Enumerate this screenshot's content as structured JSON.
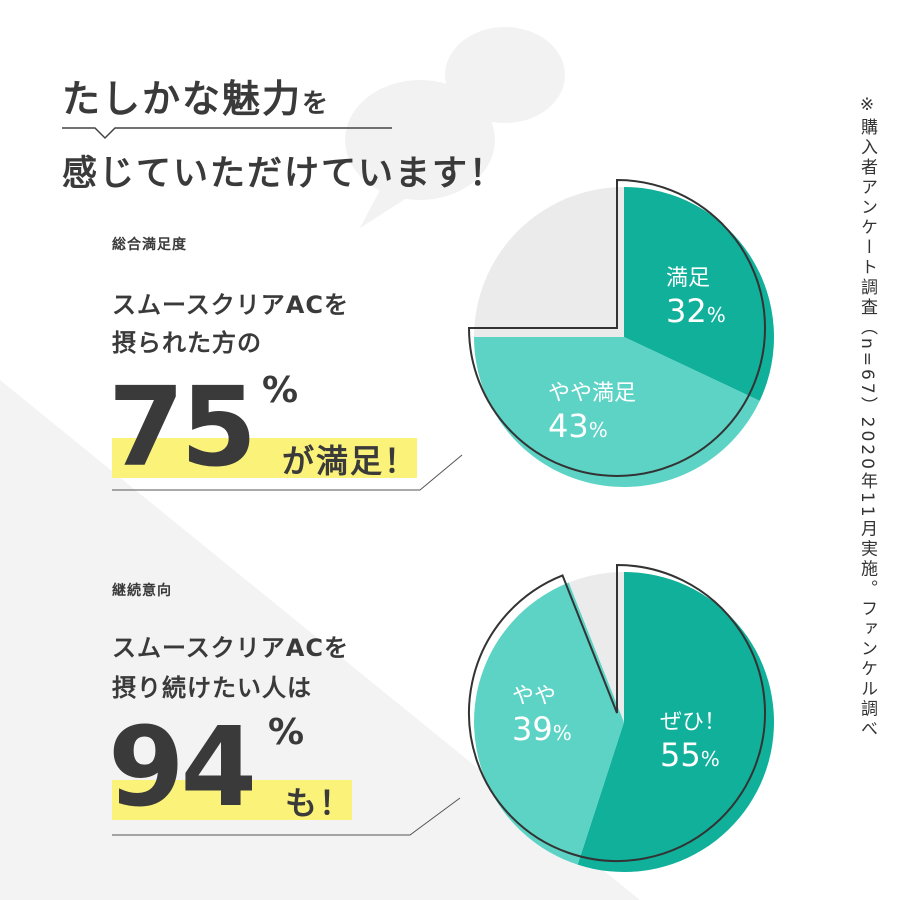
{
  "heading": {
    "line1_main": "たしかな魅力",
    "line1_particle": "を",
    "line2": "感じていただけています！"
  },
  "section1": {
    "label": "総合満足度",
    "lead1": "スムースクリアACを",
    "lead2": "摂られた方の",
    "big_number": "75",
    "percent": "%",
    "tail": "が満足！"
  },
  "section2": {
    "label": "継続意向",
    "lead1": "スムースクリアACを",
    "lead2": "摂り続けたい人は",
    "big_number": "94",
    "percent": "%",
    "tail": "も！"
  },
  "note": "※購入者アンケート調査（n=67）2020年11月実施。ファンケル調べ",
  "colors": {
    "dark": "#10b09b",
    "light": "#5dd3c6",
    "grey": "#ebebeb",
    "highlight": "#fbf27a"
  },
  "chart_data": [
    {
      "type": "pie",
      "title": "総合満足度",
      "slices": [
        {
          "label": "満足",
          "value": 32,
          "display": "32",
          "unit": "%"
        },
        {
          "label": "やや満足",
          "value": 43,
          "display": "43",
          "unit": "%"
        },
        {
          "label": "",
          "value": 25
        }
      ]
    },
    {
      "type": "pie",
      "title": "継続意向",
      "slices": [
        {
          "label": "ぜひ！",
          "value": 55,
          "display": "55",
          "unit": "%"
        },
        {
          "label": "やや",
          "value": 39,
          "display": "39",
          "unit": "%"
        },
        {
          "label": "",
          "value": 6
        }
      ]
    }
  ]
}
